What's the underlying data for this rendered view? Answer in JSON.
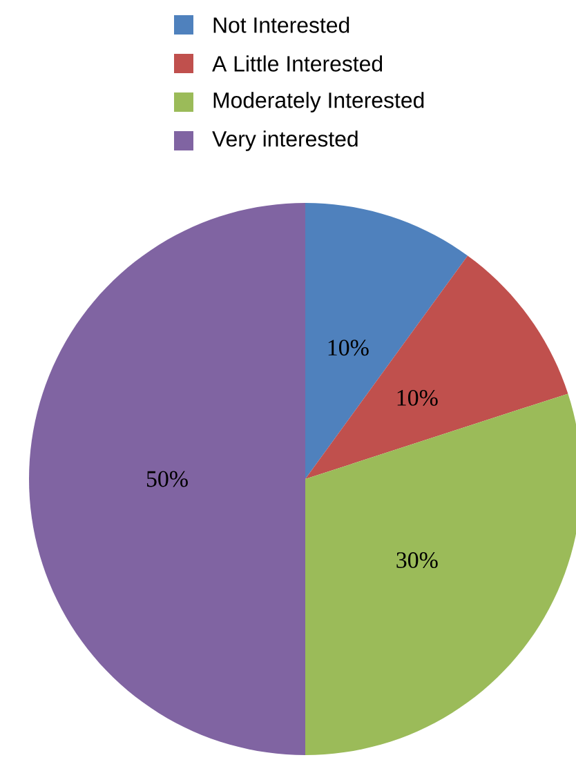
{
  "chart_data": {
    "type": "pie",
    "categories": [
      "Not Interested",
      "A Little Interested",
      "Moderately Interested",
      "Very interested"
    ],
    "values": [
      10,
      10,
      30,
      50
    ],
    "colors": [
      "#4f81bd",
      "#c0504d",
      "#9bbb59",
      "#8064a2"
    ],
    "value_labels": [
      "10%",
      "10%",
      "30%",
      "50%"
    ],
    "legend": "top"
  }
}
